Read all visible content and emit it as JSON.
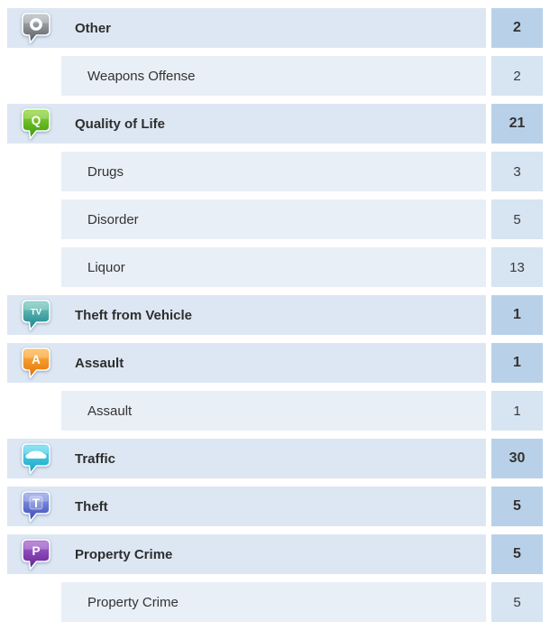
{
  "colors": {
    "category_row_bg": "#dde7f3",
    "subcategory_row_bg": "#e9eff7",
    "category_count_bg": "#b9d1e8",
    "subcategory_count_bg": "#d7e4f2",
    "text": "#333333",
    "icon_glyph": "#ffffff"
  },
  "rows": [
    {
      "type": "category",
      "label": "Other",
      "count": "2",
      "icon": {
        "name": "other-bubble-icon",
        "glyph": "ring",
        "color_top": "#bcc0c4",
        "color_bottom": "#54575b"
      }
    },
    {
      "type": "subcategory",
      "label": "Weapons Offense",
      "count": "2"
    },
    {
      "type": "category",
      "label": "Quality of Life",
      "count": "21",
      "icon": {
        "name": "quality-of-life-bubble-icon",
        "glyph": "letter",
        "letter": "Q",
        "color_top": "#94d83a",
        "color_bottom": "#36990a"
      }
    },
    {
      "type": "subcategory",
      "label": "Drugs",
      "count": "3"
    },
    {
      "type": "subcategory",
      "label": "Disorder",
      "count": "5"
    },
    {
      "type": "subcategory",
      "label": "Liquor",
      "count": "13"
    },
    {
      "type": "category",
      "label": "Theft from Vehicle",
      "count": "1",
      "icon": {
        "name": "theft-from-vehicle-bubble-icon",
        "glyph": "letter",
        "letter": "TV",
        "color_top": "#7cccc0",
        "color_bottom": "#16808d"
      }
    },
    {
      "type": "category",
      "label": "Assault",
      "count": "1",
      "icon": {
        "name": "assault-bubble-icon",
        "glyph": "letter",
        "letter": "A",
        "color_top": "#ffb84a",
        "color_bottom": "#e26e00"
      }
    },
    {
      "type": "subcategory",
      "label": "Assault",
      "count": "1"
    },
    {
      "type": "category",
      "label": "Traffic",
      "count": "30",
      "icon": {
        "name": "traffic-bubble-icon",
        "glyph": "car",
        "color_top": "#66dcef",
        "color_bottom": "#0fa3c6"
      }
    },
    {
      "type": "category",
      "label": "Theft",
      "count": "5",
      "icon": {
        "name": "theft-bubble-icon",
        "glyph": "letter-tile",
        "letter": "T",
        "color_top": "#94a7ea",
        "color_bottom": "#3944b5"
      }
    },
    {
      "type": "category",
      "label": "Property Crime",
      "count": "5",
      "icon": {
        "name": "property-crime-bubble-icon",
        "glyph": "letter",
        "letter": "P",
        "color_top": "#a866d4",
        "color_bottom": "#61208f"
      }
    },
    {
      "type": "subcategory",
      "label": "Property Crime",
      "count": "5"
    }
  ]
}
